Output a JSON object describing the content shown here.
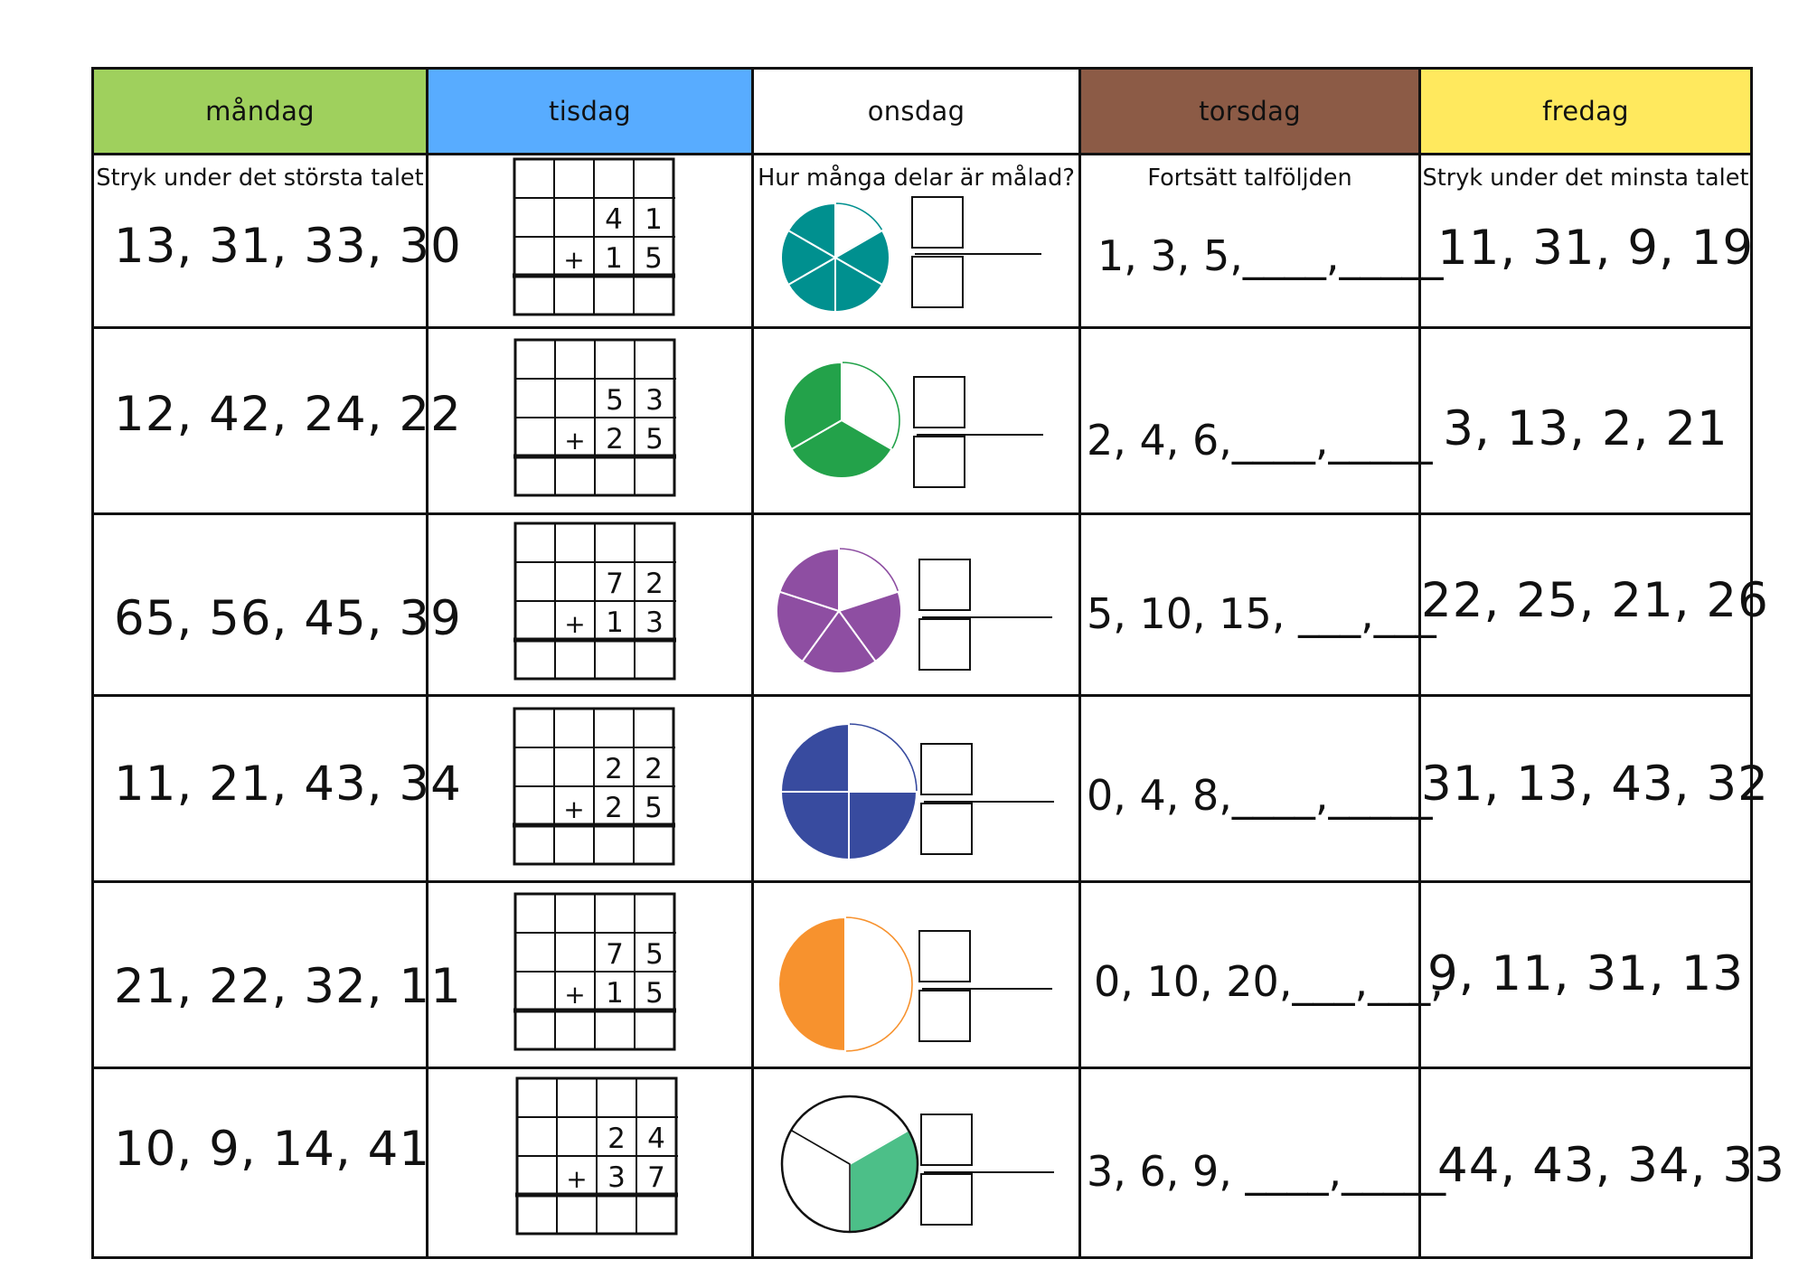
{
  "header": {
    "days": [
      {
        "label": "måndag",
        "color": "#9fd05d"
      },
      {
        "label": "tisdag",
        "color": "#58acff"
      },
      {
        "label": "onsdag",
        "color": "#ffffff"
      },
      {
        "label": "torsdag",
        "color": "#8c5b46"
      },
      {
        "label": "fredag",
        "color": "#ffe95e"
      }
    ]
  },
  "instructions": {
    "monday": "Stryk under det största talet",
    "wednesday": "Hur många delar är målad?",
    "thursday": "Fortsätt talföljden",
    "friday": "Stryk under det minsta talet"
  },
  "rows": [
    {
      "monday": "13, 31, 33, 30",
      "addition": {
        "top": [
          "4",
          "1"
        ],
        "bottom": [
          "1",
          "5"
        ],
        "operator": "+"
      },
      "pie": {
        "parts": 6,
        "colored": 5,
        "color": "#00908f"
      },
      "thursday": "1, 3, 5,____,_____",
      "friday": "11, 31, 9, 19"
    },
    {
      "monday": "12, 42, 24, 22",
      "addition": {
        "top": [
          "5",
          "3"
        ],
        "bottom": [
          "2",
          "5"
        ],
        "operator": "+"
      },
      "pie": {
        "parts": 3,
        "colored": 2,
        "color": "#23a24a"
      },
      "thursday": "2, 4, 6,____,_____",
      "friday": "3, 13, 2, 21"
    },
    {
      "monday": "65, 56, 45, 39",
      "addition": {
        "top": [
          "7",
          "2"
        ],
        "bottom": [
          "1",
          "3"
        ],
        "operator": "+"
      },
      "pie": {
        "parts": 5,
        "colored": 4,
        "color": "#8e4ea2"
      },
      "thursday": "5, 10, 15, ___,___",
      "friday": "22, 25, 21, 26"
    },
    {
      "monday": "11, 21, 43, 34",
      "addition": {
        "top": [
          "2",
          "2"
        ],
        "bottom": [
          "2",
          "5"
        ],
        "operator": "+"
      },
      "pie": {
        "parts": 4,
        "colored": 3,
        "color": "#384b9f"
      },
      "thursday": "0, 4, 8,____,_____",
      "friday": "31, 13, 43, 32"
    },
    {
      "monday": "21, 22, 32, 11",
      "addition": {
        "top": [
          "7",
          "5"
        ],
        "bottom": [
          "1",
          "5"
        ],
        "operator": "+"
      },
      "pie": {
        "parts": 2,
        "colored": 1,
        "color": "#f7922e"
      },
      "thursday": "0, 10, 20,___,___,",
      "friday": "9, 11, 31, 13"
    },
    {
      "monday": "10, 9, 14, 41",
      "addition": {
        "top": [
          "2",
          "4"
        ],
        "bottom": [
          "3",
          "7"
        ],
        "operator": "+"
      },
      "pie": {
        "parts": 3,
        "colored": 1,
        "color": "#4cbf88"
      },
      "thursday": "3, 6, 9, ____,_____",
      "friday": "44, 43, 34, 33"
    }
  ]
}
